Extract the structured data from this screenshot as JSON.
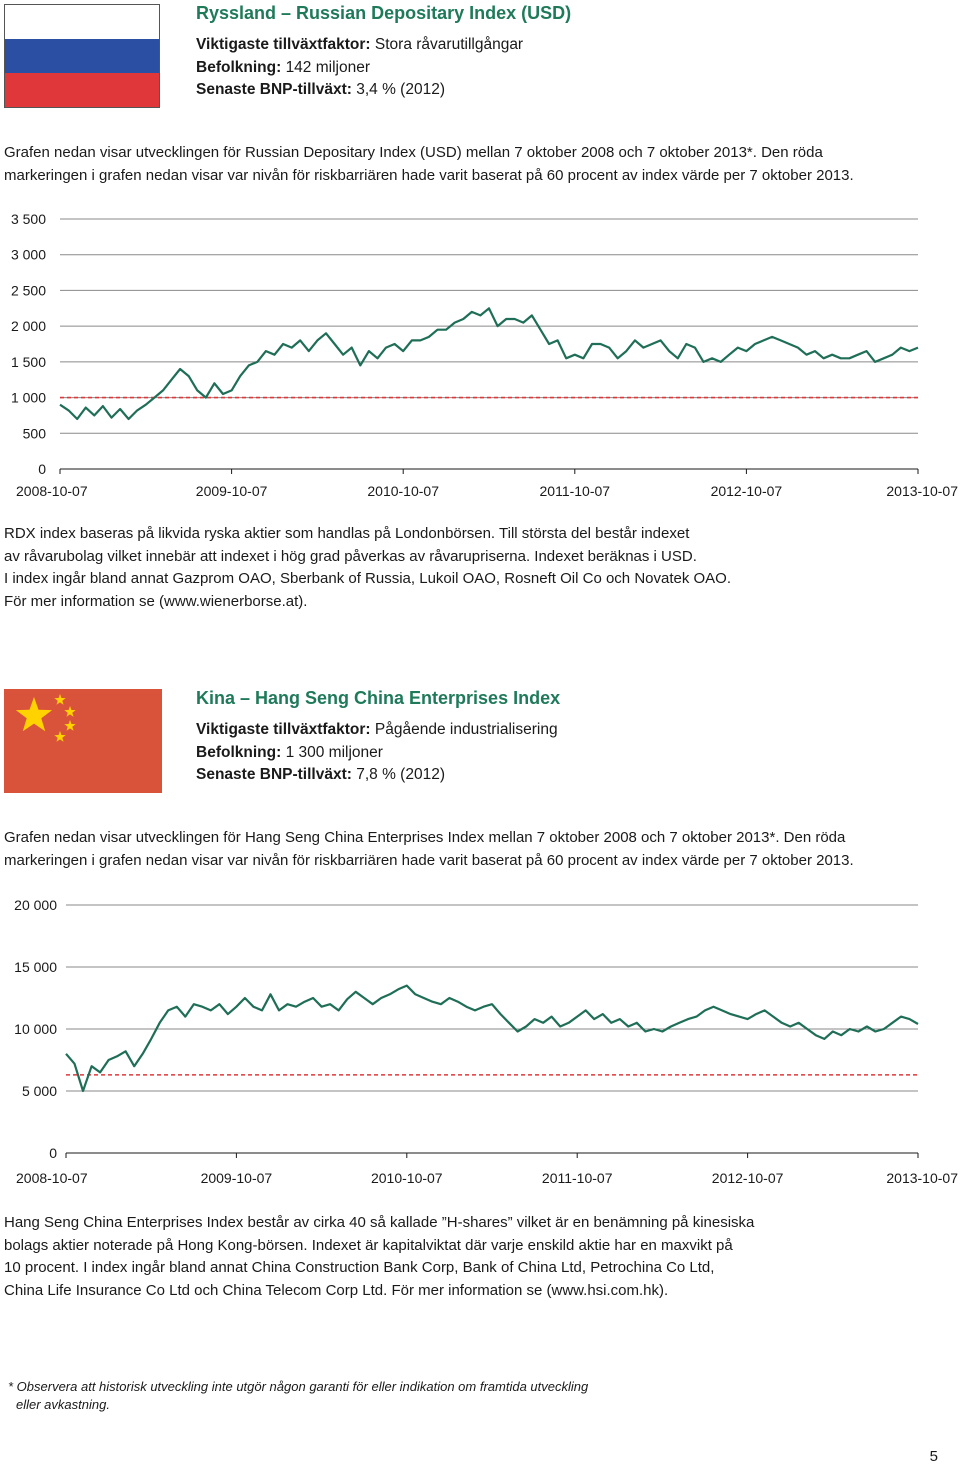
{
  "russia": {
    "flag_colors": [
      "#ffffff",
      "#2a4fa3",
      "#e0383a"
    ],
    "title": "Ryssland – Russian Depositary Index (USD)",
    "factor_label": "Viktigaste tillväxtfaktor:",
    "factor_value": "Stora råvarutillgångar",
    "population_label": "Befolkning:",
    "population_value": "142 miljoner",
    "gdp_label": "Senaste BNP-tillväxt:",
    "gdp_value": "3,4 % (2012)",
    "intro_lines": [
      "Grafen nedan visar utvecklingen för Russian Depositary Index (USD) mellan 7 oktober 2008 och 7 oktober 2013*. Den röda",
      "markeringen i grafen nedan visar var nivån för riskbarriären hade varit baserat på 60 procent av index värde per 7 oktober 2013."
    ],
    "description_lines": [
      "RDX index baseras på likvida ryska aktier som handlas på Londonbörsen. Till största del består indexet",
      "av råvarubolag vilket innebär att indexet i hög grad påverkas av råvarupriserna. Indexet beräknas i USD.",
      "I index ingår bland annat Gazprom OAO, Sberbank of Russia, Lukoil OAO, Rosneft Oil Co och Novatek OAO.",
      "För mer information se (www.wienerborse.at)."
    ]
  },
  "china": {
    "flag_colors": [
      "#d9533b",
      "#ffd200"
    ],
    "title": "Kina – Hang Seng China Enterprises Index",
    "factor_label": "Viktigaste tillväxtfaktor:",
    "factor_value": "Pågående industrialisering",
    "population_label": "Befolkning:",
    "population_value": "1 300 miljoner",
    "gdp_label": "Senaste BNP-tillväxt:",
    "gdp_value": "7,8 % (2012)",
    "intro_lines": [
      "Grafen nedan visar utvecklingen för Hang Seng China Enterprises Index mellan 7 oktober 2008 och 7 oktober 2013*. Den röda",
      "markeringen i grafen nedan visar var nivån för riskbarriären hade varit baserat på 60 procent av index värde per 7 oktober 2013."
    ],
    "description_lines": [
      "Hang Seng China Enterprises Index består av cirka 40 så kallade ”H-shares” vilket är en benämning på kinesiska",
      "bolags aktier noterade på Hong Kong-börsen. Indexet är kapitalviktat där varje enskild aktie har en maxvikt på",
      "10 procent. I index ingår bland annat China Construction Bank Corp, Bank of China Ltd, Petrochina Co Ltd,",
      "China Life Insurance Co Ltd och China Telecom Corp Ltd. För mer information se (www.hsi.com.hk)."
    ]
  },
  "chart_data": [
    {
      "type": "line",
      "name": "Russian Depositary Index (USD)",
      "x_ticks": [
        "2008-10-07",
        "2009-10-07",
        "2010-10-07",
        "2011-10-07",
        "2012-10-07",
        "2013-10-07"
      ],
      "y_ticks": [
        "0",
        "500",
        "1 000",
        "1 500",
        "2 000",
        "2 500",
        "3 000",
        "3 500"
      ],
      "y_range": [
        0,
        3500
      ],
      "grid": "horizontal",
      "line_color": "#1f6e57",
      "barrier_color": "#e0383a",
      "barrier": 1000,
      "x": [
        0,
        0.05,
        0.1,
        0.15,
        0.2,
        0.25,
        0.3,
        0.35,
        0.4,
        0.45,
        0.5,
        0.55,
        0.6,
        0.65,
        0.7,
        0.75,
        0.8,
        0.85,
        0.9,
        0.95,
        1.0,
        1.05,
        1.1,
        1.15,
        1.2,
        1.25,
        1.3,
        1.35,
        1.4,
        1.45,
        1.5,
        1.55,
        1.6,
        1.65,
        1.7,
        1.75,
        1.8,
        1.85,
        1.9,
        1.95,
        2.0,
        2.05,
        2.1,
        2.15,
        2.2,
        2.25,
        2.3,
        2.35,
        2.4,
        2.45,
        2.5,
        2.55,
        2.6,
        2.65,
        2.7,
        2.75,
        2.8,
        2.85,
        2.9,
        2.95,
        3.0,
        3.05,
        3.1,
        3.15,
        3.2,
        3.25,
        3.3,
        3.35,
        3.4,
        3.45,
        3.5,
        3.55,
        3.6,
        3.65,
        3.7,
        3.75,
        3.8,
        3.85,
        3.9,
        3.95,
        4.0,
        4.05,
        4.1,
        4.15,
        4.2,
        4.25,
        4.3,
        4.35,
        4.4,
        4.45,
        4.5,
        4.55,
        4.6,
        4.65,
        4.7,
        4.75,
        4.8,
        4.85,
        4.9,
        4.95,
        5.0
      ],
      "values": [
        900,
        820,
        700,
        860,
        750,
        880,
        720,
        840,
        700,
        820,
        900,
        1000,
        1100,
        1250,
        1400,
        1300,
        1100,
        1000,
        1200,
        1050,
        1100,
        1300,
        1450,
        1500,
        1650,
        1600,
        1750,
        1700,
        1800,
        1650,
        1800,
        1900,
        1750,
        1600,
        1700,
        1450,
        1650,
        1550,
        1700,
        1750,
        1650,
        1800,
        1800,
        1850,
        1950,
        1950,
        2050,
        2100,
        2200,
        2150,
        2250,
        2000,
        2100,
        2100,
        2050,
        2150,
        1950,
        1750,
        1800,
        1550,
        1600,
        1550,
        1750,
        1750,
        1700,
        1550,
        1650,
        1800,
        1700,
        1750,
        1800,
        1650,
        1550,
        1750,
        1700,
        1500,
        1550,
        1500,
        1600,
        1700,
        1650,
        1750,
        1800,
        1850,
        1800,
        1750,
        1700,
        1600,
        1650,
        1550,
        1600,
        1550,
        1550,
        1600,
        1650,
        1500,
        1550,
        1600,
        1700,
        1650,
        1700
      ]
    },
    {
      "type": "line",
      "name": "Hang Seng China Enterprises Index",
      "x_ticks": [
        "2008-10-07",
        "2009-10-07",
        "2010-10-07",
        "2011-10-07",
        "2012-10-07",
        "2013-10-07"
      ],
      "y_ticks": [
        "0",
        "5 000",
        "10 000",
        "15 000",
        "20 000"
      ],
      "y_range": [
        0,
        20000
      ],
      "grid": "horizontal",
      "line_color": "#1f6e57",
      "barrier_color": "#e0383a",
      "barrier": 6300,
      "x": [
        0,
        0.05,
        0.1,
        0.15,
        0.2,
        0.25,
        0.3,
        0.35,
        0.4,
        0.45,
        0.5,
        0.55,
        0.6,
        0.65,
        0.7,
        0.75,
        0.8,
        0.85,
        0.9,
        0.95,
        1.0,
        1.05,
        1.1,
        1.15,
        1.2,
        1.25,
        1.3,
        1.35,
        1.4,
        1.45,
        1.5,
        1.55,
        1.6,
        1.65,
        1.7,
        1.75,
        1.8,
        1.85,
        1.9,
        1.95,
        2.0,
        2.05,
        2.1,
        2.15,
        2.2,
        2.25,
        2.3,
        2.35,
        2.4,
        2.45,
        2.5,
        2.55,
        2.6,
        2.65,
        2.7,
        2.75,
        2.8,
        2.85,
        2.9,
        2.95,
        3.0,
        3.05,
        3.1,
        3.15,
        3.2,
        3.25,
        3.3,
        3.35,
        3.4,
        3.45,
        3.5,
        3.55,
        3.6,
        3.65,
        3.7,
        3.75,
        3.8,
        3.85,
        3.9,
        3.95,
        4.0,
        4.05,
        4.1,
        4.15,
        4.2,
        4.25,
        4.3,
        4.35,
        4.4,
        4.45,
        4.5,
        4.55,
        4.6,
        4.65,
        4.7,
        4.75,
        4.8,
        4.85,
        4.9,
        4.95,
        5.0
      ],
      "values": [
        8000,
        7200,
        5000,
        7000,
        6500,
        7500,
        7800,
        8200,
        7000,
        8000,
        9200,
        10500,
        11500,
        11800,
        11000,
        12000,
        11800,
        11500,
        12000,
        11200,
        11800,
        12500,
        11800,
        11500,
        12800,
        11500,
        12000,
        11800,
        12200,
        12500,
        11800,
        12000,
        11500,
        12400,
        13000,
        12500,
        12000,
        12500,
        12800,
        13200,
        13500,
        12800,
        12500,
        12200,
        12000,
        12500,
        12200,
        11800,
        11500,
        11800,
        12000,
        11200,
        10500,
        9800,
        10200,
        10800,
        10500,
        11000,
        10200,
        10500,
        11000,
        11500,
        10800,
        11200,
        10500,
        10800,
        10200,
        10500,
        9800,
        10000,
        9800,
        10200,
        10500,
        10800,
        11000,
        11500,
        11800,
        11500,
        11200,
        11000,
        10800,
        11200,
        11500,
        11000,
        10500,
        10200,
        10500,
        10000,
        9500,
        9200,
        9800,
        9500,
        10000,
        9800,
        10200,
        9800,
        10000,
        10500,
        11000,
        10800,
        10400
      ]
    }
  ],
  "footnote_lines": [
    "* Observera att historisk utveckling inte utgör någon garanti för eller indikation om framtida utveckling",
    "eller avkastning."
  ],
  "page_number": "5"
}
